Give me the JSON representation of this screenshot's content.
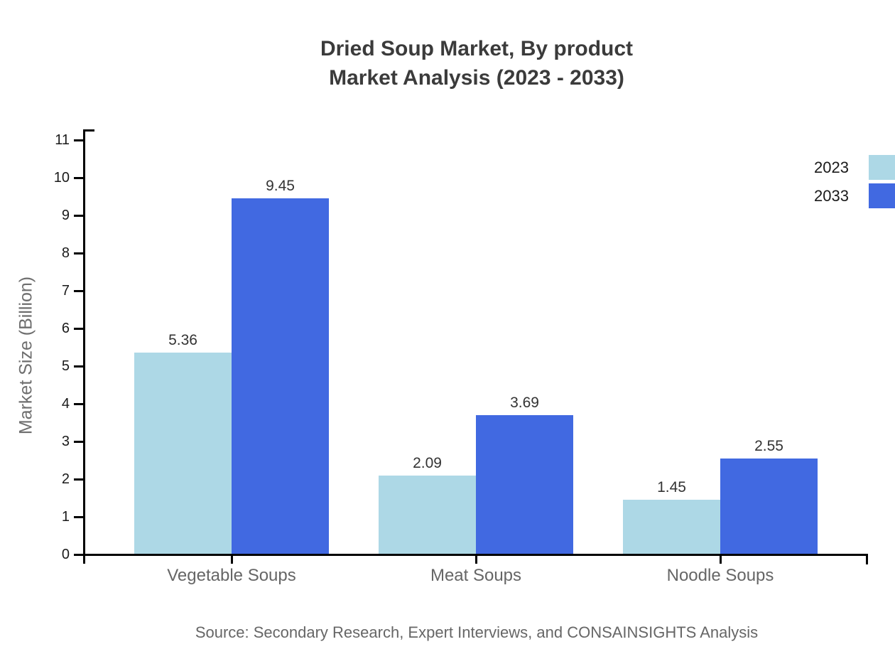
{
  "title": {
    "line1": "Dried Soup Market, By product",
    "line2": "Market Analysis (2023 - 2033)"
  },
  "chart_data": {
    "type": "bar",
    "categories": [
      "Vegetable Soups",
      "Meat Soups",
      "Noodle Soups"
    ],
    "series": [
      {
        "name": "2023",
        "color": "#ADD8E6",
        "values": [
          5.36,
          2.09,
          1.45
        ]
      },
      {
        "name": "2033",
        "color": "#4169E1",
        "values": [
          9.45,
          3.69,
          2.55
        ]
      }
    ],
    "ylabel": "Market Size (Billion)",
    "xlabel": "",
    "ylim": [
      0,
      11
    ],
    "yticks": [
      0,
      1,
      2,
      3,
      4,
      5,
      6,
      7,
      8,
      9,
      10,
      11
    ],
    "grid": false,
    "legend_position": "top-right",
    "value_labels": true
  },
  "source_note": "Source: Secondary Research, Expert Interviews, and CONSAINSIGHTS Analysis"
}
